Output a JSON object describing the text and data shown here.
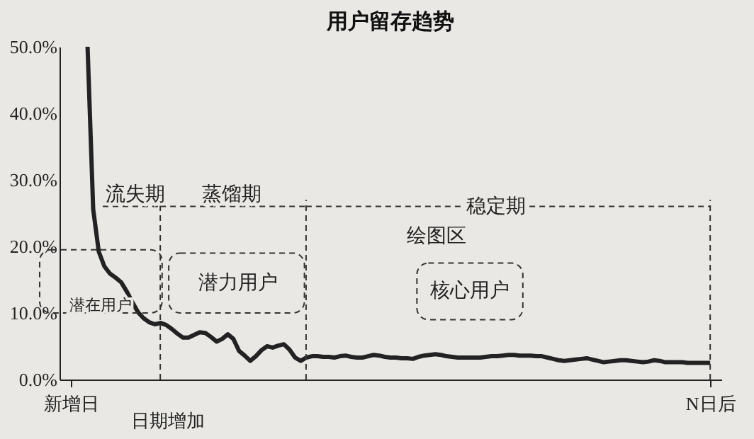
{
  "chart_data": {
    "type": "line",
    "title": "用户留存趋势",
    "xlabel": "日期增加",
    "categories": [
      "新增日",
      null,
      null,
      null,
      null,
      null,
      null,
      null,
      null,
      null,
      null,
      null,
      null,
      null,
      null,
      null,
      null,
      null,
      null,
      null,
      null,
      null,
      null,
      null,
      null,
      null,
      null,
      null,
      null,
      null,
      null,
      null,
      null,
      null,
      null,
      null,
      null,
      null,
      null,
      null,
      null,
      null,
      null,
      null,
      null,
      null,
      null,
      null,
      null,
      null,
      null,
      null,
      null,
      null,
      null,
      null,
      null,
      null,
      null,
      null,
      null,
      null,
      null,
      null,
      null,
      null,
      null,
      null,
      null,
      null,
      null,
      null,
      null,
      null,
      null,
      null,
      null,
      null,
      null,
      null,
      null,
      null,
      null,
      null,
      null,
      null,
      null,
      null,
      null,
      null,
      null,
      null,
      null,
      null,
      null,
      null,
      null,
      null,
      null,
      null,
      null,
      null,
      null,
      null,
      null,
      null,
      null,
      null,
      null,
      null,
      null,
      null,
      null,
      null,
      "N日后"
    ],
    "values": [
      null,
      null,
      null,
      50,
      25.6,
      19.2,
      17,
      15.9,
      15.3,
      14.6,
      13.2,
      11.6,
      10.1,
      9.2,
      8.6,
      8.3,
      8.5,
      8.2,
      7.6,
      6.9,
      6.3,
      6.3,
      6.7,
      7.1,
      7.0,
      6.4,
      5.7,
      6.1,
      6.8,
      6.1,
      4.3,
      3.6,
      2.8,
      3.5,
      4.4,
      5.0,
      4.8,
      5.1,
      5.3,
      4.5,
      3.3,
      2.8,
      3.3,
      3.5,
      3.5,
      3.4,
      3.4,
      3.3,
      3.5,
      3.6,
      3.4,
      3.3,
      3.3,
      3.5,
      3.7,
      3.6,
      3.4,
      3.3,
      3.3,
      3.2,
      3.2,
      3.1,
      3.4,
      3.6,
      3.7,
      3.8,
      3.7,
      3.5,
      3.4,
      3.3,
      3.3,
      3.3,
      3.3,
      3.3,
      3.4,
      3.5,
      3.5,
      3.6,
      3.7,
      3.7,
      3.6,
      3.6,
      3.6,
      3.5,
      3.5,
      3.3,
      3.1,
      2.9,
      2.8,
      2.9,
      3.0,
      3.1,
      3.2,
      3.0,
      2.8,
      2.6,
      2.7,
      2.8,
      2.9,
      2.9,
      2.8,
      2.7,
      2.6,
      2.7,
      2.9,
      2.8,
      2.6,
      2.6,
      2.6,
      2.6,
      2.5,
      2.5,
      2.5,
      2.5,
      2.5
    ],
    "color": "#222222",
    "ylim": [
      0,
      50
    ],
    "yticks": [
      {
        "value": 0,
        "label": "0.0%"
      },
      {
        "value": 10,
        "label": "10.0%"
      },
      {
        "value": 20,
        "label": "20.0%"
      },
      {
        "value": 30,
        "label": "30.0%"
      },
      {
        "value": 40,
        "label": "40.0%"
      },
      {
        "value": 50,
        "label": "50.0%"
      }
    ],
    "annotations": [
      "流失期",
      "蒸馏期",
      "稳定期",
      "潜在用户",
      "潜力用户",
      "核心用户",
      "绘图区"
    ]
  }
}
